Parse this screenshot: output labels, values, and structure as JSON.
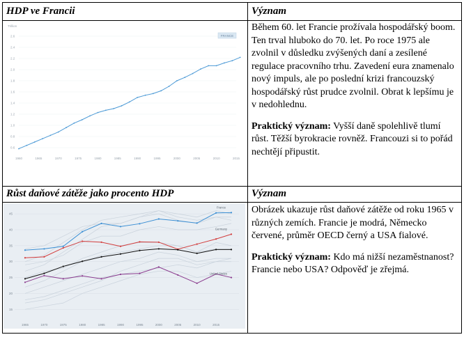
{
  "row1": {
    "left_header": "HDP ve Francii",
    "right_header": "Význam",
    "paragraph": "Během 60. let Francie prožívala hospodářský boom. Ten trval hluboko do 70. let. Po roce 1975 ale zvolnil v důsledku zvýšených daní a zesílené regulace pracovního trhu. Zavedení eura znamenalo nový impuls, ale po poslední krizi francouzský hospodářský růst prudce zvolnil. Obrat k lepšímu je v nedohlednu.",
    "practical_label": "Praktický význam:",
    "practical_text": " Vyšší daně spolehlivě tlumí růst. Těžší byrokracie rovněž. Francouzi si to pořád nechtějí připustit."
  },
  "row2": {
    "left_header": "Růst daňové zátěže jako procento HDP",
    "right_header": "Význam",
    "paragraph": "Obrázek ukazuje růst daňové zátěže od roku 1965 v různých zemích. Francie je modrá, Německo červené, průměr OECD černý a USA fialové.",
    "practical_label": "Praktický význam:",
    "practical_text": " Kdo má nižší nezaměstnanost? Francie nebo USA? Odpověď je zřejmá."
  },
  "chart_data": [
    {
      "type": "line",
      "unit_label": "Trillion",
      "x": [
        1960,
        1962,
        1964,
        1966,
        1968,
        1970,
        1972,
        1974,
        1976,
        1978,
        1980,
        1982,
        1984,
        1986,
        1988,
        1990,
        1992,
        1994,
        1996,
        1998,
        2000,
        2002,
        2004,
        2006,
        2008,
        2010,
        2012,
        2014,
        2016
      ],
      "xticks": [
        1960,
        1965,
        1970,
        1975,
        1980,
        1985,
        1990,
        1995,
        2000,
        2005,
        2010,
        2015
      ],
      "yticks": [
        "0.6",
        "0.8",
        "1.0",
        "1.2",
        "1.4",
        "1.6",
        "1.8",
        "2.0",
        "2.2",
        "2.4",
        "2.6"
      ],
      "ylim": [
        0.5,
        2.7
      ],
      "legend": "FRANCE",
      "legend_position": "top-right",
      "series": [
        {
          "name": "FRANCE",
          "color": "#4c9ad6",
          "values": [
            0.58,
            0.64,
            0.7,
            0.76,
            0.82,
            0.88,
            0.96,
            1.04,
            1.1,
            1.17,
            1.23,
            1.27,
            1.3,
            1.35,
            1.42,
            1.5,
            1.54,
            1.57,
            1.62,
            1.7,
            1.8,
            1.86,
            1.93,
            2.01,
            2.07,
            2.07,
            2.12,
            2.16,
            2.22
          ]
        }
      ]
    },
    {
      "type": "line",
      "x": [
        1965,
        1970,
        1975,
        1980,
        1985,
        1990,
        1995,
        2000,
        2005,
        2010,
        2015,
        2019
      ],
      "xticks": [
        "1965",
        "1970",
        "1975",
        "1980",
        "1985",
        "1990",
        "1995",
        "2000",
        "2005",
        "2010",
        "2015"
      ],
      "yticks": [
        "15",
        "20",
        "25",
        "30",
        "35",
        "40",
        "45"
      ],
      "ylim": [
        12,
        47
      ],
      "series": [
        {
          "name": "France",
          "color": "#3b8fd4",
          "values": [
            33.6,
            34.0,
            34.8,
            39.4,
            42.0,
            41.0,
            41.9,
            43.4,
            42.8,
            42.1,
            45.3,
            45.4
          ]
        },
        {
          "name": "Germany",
          "color": "#d23c3c",
          "values": [
            31.2,
            31.5,
            34.3,
            36.4,
            36.1,
            34.8,
            36.2,
            36.1,
            33.9,
            35.5,
            37.1,
            38.6
          ]
        },
        {
          "name": "OECD",
          "color": "#111111",
          "values": [
            24.6,
            26.3,
            28.5,
            30.1,
            31.5,
            32.4,
            33.5,
            34.0,
            33.7,
            32.6,
            33.8,
            33.8
          ]
        },
        {
          "name": "United States",
          "color": "#8a3b8e",
          "values": [
            23.5,
            25.6,
            24.6,
            25.5,
            24.6,
            26.0,
            26.3,
            28.3,
            25.8,
            23.2,
            26.1,
            25.0
          ]
        }
      ],
      "background_series_color": "#c9d2dc"
    }
  ]
}
